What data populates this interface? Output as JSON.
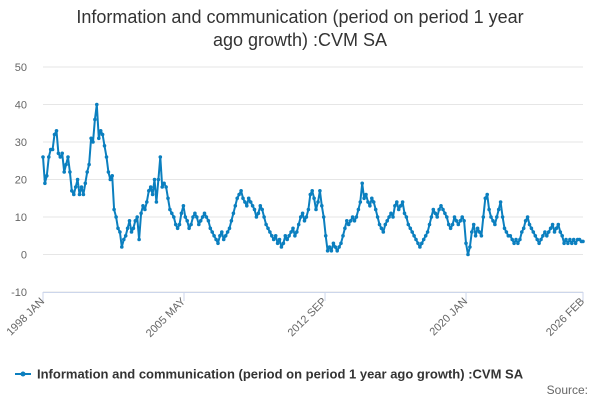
{
  "chart_data": {
    "type": "line",
    "title_lines": [
      "Information and communication (period on period 1 year",
      "ago growth) :CVM SA"
    ],
    "xlabel": "",
    "ylabel": "",
    "x_range": [
      1998.0,
      2026.083
    ],
    "ylim": [
      -10,
      50
    ],
    "yticks": [
      -10,
      0,
      10,
      20,
      30,
      40,
      50
    ],
    "xtick_labels": [
      {
        "label": "1998 JAN",
        "x": 1998.0
      },
      {
        "label": "2005 MAY",
        "x": 2005.333
      },
      {
        "label": "2012 SEP",
        "x": 2012.667
      },
      {
        "label": "2020 JAN",
        "x": 2020.0
      },
      {
        "label": "2026 FEB",
        "x": 2026.083
      }
    ],
    "grid": "horizontal",
    "legend_position": "bottom",
    "color": "#0b7fbf",
    "series": [
      {
        "name": "Information and communication (period on period 1 year ago growth) :CVM SA",
        "points": [
          [
            1998.0,
            26
          ],
          [
            1998.1,
            19
          ],
          [
            1998.2,
            21
          ],
          [
            1998.3,
            26
          ],
          [
            1998.4,
            28
          ],
          [
            1998.5,
            28
          ],
          [
            1998.6,
            32
          ],
          [
            1998.7,
            33
          ],
          [
            1998.8,
            27
          ],
          [
            1998.9,
            26
          ],
          [
            1999.0,
            27
          ],
          [
            1999.1,
            22
          ],
          [
            1999.2,
            24
          ],
          [
            1999.3,
            26
          ],
          [
            1999.4,
            22
          ],
          [
            1999.5,
            17
          ],
          [
            1999.6,
            16
          ],
          [
            1999.7,
            18
          ],
          [
            1999.8,
            20
          ],
          [
            1999.9,
            16
          ],
          [
            2000.0,
            18
          ],
          [
            2000.1,
            16
          ],
          [
            2000.2,
            19
          ],
          [
            2000.3,
            22
          ],
          [
            2000.4,
            24
          ],
          [
            2000.5,
            31
          ],
          [
            2000.6,
            30
          ],
          [
            2000.7,
            36
          ],
          [
            2000.8,
            40
          ],
          [
            2000.9,
            31
          ],
          [
            2001.0,
            33
          ],
          [
            2001.1,
            32
          ],
          [
            2001.2,
            29
          ],
          [
            2001.3,
            26
          ],
          [
            2001.4,
            22
          ],
          [
            2001.5,
            20
          ],
          [
            2001.6,
            21
          ],
          [
            2001.7,
            12
          ],
          [
            2001.8,
            10
          ],
          [
            2001.9,
            7
          ],
          [
            2002.0,
            6
          ],
          [
            2002.1,
            2
          ],
          [
            2002.2,
            4
          ],
          [
            2002.3,
            5
          ],
          [
            2002.4,
            7
          ],
          [
            2002.5,
            9
          ],
          [
            2002.6,
            6
          ],
          [
            2002.7,
            7
          ],
          [
            2002.8,
            9
          ],
          [
            2002.9,
            10
          ],
          [
            2003.0,
            4
          ],
          [
            2003.1,
            11
          ],
          [
            2003.2,
            13
          ],
          [
            2003.3,
            12
          ],
          [
            2003.4,
            14
          ],
          [
            2003.5,
            17
          ],
          [
            2003.6,
            18
          ],
          [
            2003.7,
            16
          ],
          [
            2003.8,
            20
          ],
          [
            2003.9,
            14
          ],
          [
            2004.0,
            20
          ],
          [
            2004.1,
            26
          ],
          [
            2004.2,
            18
          ],
          [
            2004.3,
            19
          ],
          [
            2004.4,
            18
          ],
          [
            2004.5,
            15
          ],
          [
            2004.6,
            12
          ],
          [
            2004.7,
            11
          ],
          [
            2004.8,
            10
          ],
          [
            2004.9,
            8
          ],
          [
            2005.0,
            7
          ],
          [
            2005.1,
            8
          ],
          [
            2005.2,
            11
          ],
          [
            2005.3,
            13
          ],
          [
            2005.4,
            10
          ],
          [
            2005.5,
            9
          ],
          [
            2005.6,
            7
          ],
          [
            2005.7,
            8
          ],
          [
            2005.8,
            10
          ],
          [
            2005.9,
            11
          ],
          [
            2006.0,
            10
          ],
          [
            2006.1,
            8
          ],
          [
            2006.2,
            9
          ],
          [
            2006.3,
            10
          ],
          [
            2006.4,
            11
          ],
          [
            2006.5,
            10
          ],
          [
            2006.6,
            9
          ],
          [
            2006.7,
            7
          ],
          [
            2006.8,
            6
          ],
          [
            2006.9,
            5
          ],
          [
            2007.0,
            4
          ],
          [
            2007.1,
            3
          ],
          [
            2007.2,
            5
          ],
          [
            2007.3,
            6
          ],
          [
            2007.4,
            4
          ],
          [
            2007.5,
            5
          ],
          [
            2007.6,
            6
          ],
          [
            2007.7,
            7
          ],
          [
            2007.8,
            9
          ],
          [
            2007.9,
            11
          ],
          [
            2008.0,
            13
          ],
          [
            2008.1,
            15
          ],
          [
            2008.2,
            16
          ],
          [
            2008.3,
            17
          ],
          [
            2008.4,
            15
          ],
          [
            2008.5,
            14
          ],
          [
            2008.6,
            13
          ],
          [
            2008.7,
            15
          ],
          [
            2008.8,
            14
          ],
          [
            2008.9,
            13
          ],
          [
            2009.0,
            12
          ],
          [
            2009.1,
            10
          ],
          [
            2009.2,
            11
          ],
          [
            2009.3,
            13
          ],
          [
            2009.4,
            12
          ],
          [
            2009.5,
            10
          ],
          [
            2009.6,
            8
          ],
          [
            2009.7,
            7
          ],
          [
            2009.8,
            6
          ],
          [
            2009.9,
            5
          ],
          [
            2010.0,
            4
          ],
          [
            2010.1,
            5
          ],
          [
            2010.2,
            3
          ],
          [
            2010.3,
            4
          ],
          [
            2010.4,
            2
          ],
          [
            2010.5,
            3
          ],
          [
            2010.6,
            5
          ],
          [
            2010.7,
            4
          ],
          [
            2010.8,
            5
          ],
          [
            2010.9,
            6
          ],
          [
            2011.0,
            7
          ],
          [
            2011.1,
            5
          ],
          [
            2011.2,
            6
          ],
          [
            2011.3,
            8
          ],
          [
            2011.4,
            10
          ],
          [
            2011.5,
            11
          ],
          [
            2011.6,
            9
          ],
          [
            2011.7,
            10
          ],
          [
            2011.8,
            12
          ],
          [
            2011.9,
            16
          ],
          [
            2012.0,
            17
          ],
          [
            2012.1,
            15
          ],
          [
            2012.2,
            12
          ],
          [
            2012.3,
            14
          ],
          [
            2012.4,
            17
          ],
          [
            2012.5,
            13
          ],
          [
            2012.6,
            10
          ],
          [
            2012.7,
            5
          ],
          [
            2012.8,
            1
          ],
          [
            2012.9,
            2
          ],
          [
            2013.0,
            1
          ],
          [
            2013.1,
            3
          ],
          [
            2013.2,
            2
          ],
          [
            2013.3,
            1
          ],
          [
            2013.4,
            2
          ],
          [
            2013.5,
            3
          ],
          [
            2013.6,
            5
          ],
          [
            2013.7,
            7
          ],
          [
            2013.8,
            9
          ],
          [
            2013.9,
            8
          ],
          [
            2014.0,
            9
          ],
          [
            2014.1,
            10
          ],
          [
            2014.2,
            9
          ],
          [
            2014.3,
            10
          ],
          [
            2014.4,
            12
          ],
          [
            2014.5,
            14
          ],
          [
            2014.6,
            19
          ],
          [
            2014.7,
            15
          ],
          [
            2014.8,
            16
          ],
          [
            2014.9,
            14
          ],
          [
            2015.0,
            13
          ],
          [
            2015.1,
            15
          ],
          [
            2015.2,
            14
          ],
          [
            2015.3,
            12
          ],
          [
            2015.4,
            10
          ],
          [
            2015.5,
            8
          ],
          [
            2015.6,
            7
          ],
          [
            2015.7,
            6
          ],
          [
            2015.8,
            8
          ],
          [
            2015.9,
            9
          ],
          [
            2016.0,
            10
          ],
          [
            2016.1,
            11
          ],
          [
            2016.2,
            10
          ],
          [
            2016.3,
            13
          ],
          [
            2016.4,
            14
          ],
          [
            2016.5,
            12
          ],
          [
            2016.6,
            13
          ],
          [
            2016.7,
            14
          ],
          [
            2016.8,
            11
          ],
          [
            2016.9,
            10
          ],
          [
            2017.0,
            8
          ],
          [
            2017.1,
            7
          ],
          [
            2017.2,
            6
          ],
          [
            2017.3,
            5
          ],
          [
            2017.4,
            4
          ],
          [
            2017.5,
            3
          ],
          [
            2017.6,
            2
          ],
          [
            2017.7,
            3
          ],
          [
            2017.8,
            4
          ],
          [
            2017.9,
            5
          ],
          [
            2018.0,
            6
          ],
          [
            2018.1,
            8
          ],
          [
            2018.2,
            10
          ],
          [
            2018.3,
            12
          ],
          [
            2018.4,
            11
          ],
          [
            2018.5,
            10
          ],
          [
            2018.6,
            12
          ],
          [
            2018.7,
            13
          ],
          [
            2018.8,
            12
          ],
          [
            2018.9,
            11
          ],
          [
            2019.0,
            10
          ],
          [
            2019.1,
            8
          ],
          [
            2019.2,
            7
          ],
          [
            2019.3,
            8
          ],
          [
            2019.4,
            10
          ],
          [
            2019.5,
            9
          ],
          [
            2019.6,
            8
          ],
          [
            2019.7,
            9
          ],
          [
            2019.8,
            10
          ],
          [
            2019.9,
            9
          ],
          [
            2020.0,
            3
          ],
          [
            2020.1,
            0
          ],
          [
            2020.2,
            2
          ],
          [
            2020.3,
            6
          ],
          [
            2020.4,
            8
          ],
          [
            2020.5,
            5
          ],
          [
            2020.6,
            7
          ],
          [
            2020.7,
            6
          ],
          [
            2020.8,
            5
          ],
          [
            2020.9,
            10
          ],
          [
            2021.0,
            15
          ],
          [
            2021.1,
            16
          ],
          [
            2021.2,
            12
          ],
          [
            2021.3,
            10
          ],
          [
            2021.4,
            9
          ],
          [
            2021.5,
            8
          ],
          [
            2021.6,
            10
          ],
          [
            2021.7,
            12
          ],
          [
            2021.8,
            14
          ],
          [
            2021.9,
            10
          ],
          [
            2022.0,
            7
          ],
          [
            2022.1,
            6
          ],
          [
            2022.2,
            5
          ],
          [
            2022.3,
            5
          ],
          [
            2022.4,
            4
          ],
          [
            2022.5,
            3
          ],
          [
            2022.6,
            4
          ],
          [
            2022.7,
            3
          ],
          [
            2022.8,
            4
          ],
          [
            2022.9,
            6
          ],
          [
            2023.0,
            7
          ],
          [
            2023.1,
            9
          ],
          [
            2023.2,
            10
          ],
          [
            2023.3,
            8
          ],
          [
            2023.4,
            7
          ],
          [
            2023.5,
            6
          ],
          [
            2023.6,
            5
          ],
          [
            2023.7,
            4
          ],
          [
            2023.8,
            3
          ],
          [
            2023.9,
            4
          ],
          [
            2024.0,
            5
          ],
          [
            2024.1,
            6
          ],
          [
            2024.2,
            5
          ],
          [
            2024.3,
            6
          ],
          [
            2024.4,
            7
          ],
          [
            2024.5,
            8
          ],
          [
            2024.6,
            6
          ],
          [
            2024.7,
            7
          ],
          [
            2024.8,
            8
          ],
          [
            2024.9,
            6
          ],
          [
            2025.0,
            5
          ],
          [
            2025.1,
            3
          ],
          [
            2025.2,
            4
          ],
          [
            2025.3,
            3
          ],
          [
            2025.4,
            4
          ],
          [
            2025.5,
            3
          ],
          [
            2025.6,
            4
          ],
          [
            2025.7,
            3
          ],
          [
            2025.8,
            4
          ],
          [
            2025.9,
            4
          ],
          [
            2026.0,
            3.5
          ],
          [
            2026.083,
            3.5
          ]
        ]
      }
    ],
    "legend_label": "Information and communication (period on period 1 year ago growth) :CVM SA",
    "source_label": "Source:"
  }
}
